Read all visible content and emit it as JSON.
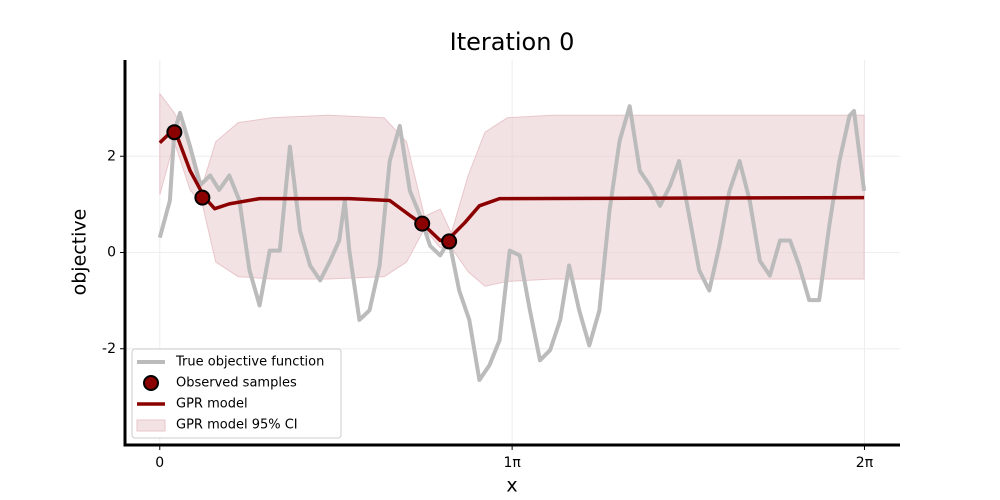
{
  "chart_data": {
    "type": "line",
    "title": "Iteration 0",
    "x_label": "x",
    "y_label": "objective",
    "xlim": [
      -0.31,
      6.6
    ],
    "ylim": [
      -4,
      4
    ],
    "xticks": [
      0,
      {
        "value": 3.14159,
        "label": "1π"
      },
      {
        "value": 6.28318,
        "label": "2π"
      }
    ],
    "yticks": [
      -2,
      0,
      2
    ],
    "grid": true,
    "legend": "lower left",
    "series": [
      {
        "name": "True objective function",
        "kind": "line",
        "color": "#bbbbbb",
        "x": [
          0,
          0.09,
          0.13,
          0.18,
          0.22,
          0.27,
          0.36,
          0.45,
          0.53,
          0.62,
          0.71,
          0.8,
          0.89,
          0.98,
          1.07,
          1.16,
          1.25,
          1.34,
          1.43,
          1.52,
          1.6,
          1.65,
          1.69,
          1.78,
          1.87,
          1.96,
          2.05,
          2.14,
          2.23,
          2.32,
          2.41,
          2.5,
          2.58,
          2.67,
          2.76,
          2.85,
          2.94,
          3.03,
          3.12,
          3.21,
          3.3,
          3.39,
          3.48,
          3.57,
          3.65,
          3.74,
          3.83,
          3.92,
          4.01,
          4.1,
          4.19,
          4.28,
          4.37,
          4.46,
          4.55,
          4.63,
          4.72,
          4.81,
          4.9,
          4.99,
          5.08,
          5.17,
          5.26,
          5.35,
          5.44,
          5.53,
          5.62,
          5.7,
          5.79,
          5.88,
          5.97,
          6.06,
          6.15,
          6.19,
          6.28
        ],
        "values": [
          0.31,
          1.08,
          2.5,
          2.9,
          2.6,
          2.2,
          1.4,
          1.6,
          1.3,
          1.6,
          1.08,
          -0.37,
          -1.1,
          0.04,
          0.04,
          2.2,
          0.45,
          -0.27,
          -0.58,
          -0.17,
          0.25,
          1.08,
          0.04,
          -1.4,
          -1.2,
          -0.27,
          1.9,
          2.63,
          1.28,
          0.77,
          0.14,
          -0.06,
          0.25,
          -0.79,
          -1.4,
          -2.65,
          -2.34,
          -1.82,
          0.04,
          -0.06,
          -1.2,
          -2.24,
          -2.03,
          -1.4,
          -0.27,
          -1.2,
          -1.93,
          -1.2,
          0.87,
          2.32,
          3.04,
          1.7,
          1.39,
          0.97,
          1.39,
          1.9,
          0.77,
          -0.37,
          -0.79,
          0.14,
          1.28,
          1.9,
          1.08,
          -0.17,
          -0.48,
          0.25,
          0.25,
          -0.27,
          -0.99,
          -0.99,
          0.56,
          1.9,
          2.84,
          2.94,
          1.28
        ]
      },
      {
        "name": "Observed samples",
        "kind": "scatter",
        "color": "#8b0000",
        "x": [
          0.13,
          0.38,
          2.34,
          2.58
        ],
        "values": [
          2.5,
          1.14,
          0.6,
          0.23
        ]
      },
      {
        "name": "GPR model",
        "kind": "line",
        "color": "#8b0000",
        "x": [
          0,
          0.13,
          0.27,
          0.4,
          0.49,
          0.62,
          0.89,
          1.69,
          2.05,
          2.23,
          2.36,
          2.5,
          2.58,
          2.72,
          2.85,
          3.03,
          6.28
        ],
        "values": [
          2.28,
          2.57,
          1.7,
          1.14,
          0.91,
          1.01,
          1.12,
          1.12,
          1.08,
          0.77,
          0.56,
          0.25,
          0.29,
          0.62,
          0.97,
          1.12,
          1.14
        ]
      },
      {
        "name": "GPR model 95% CI",
        "kind": "band",
        "color": "#e8c6ca",
        "x": [
          0,
          0.13,
          0.27,
          0.38,
          0.5,
          0.7,
          1.0,
          1.5,
          2.0,
          2.2,
          2.36,
          2.5,
          2.6,
          2.75,
          2.9,
          3.1,
          3.5,
          6.28
        ],
        "upper": [
          3.3,
          2.9,
          2.3,
          1.4,
          2.3,
          2.7,
          2.8,
          2.85,
          2.8,
          2.3,
          0.75,
          0.9,
          0.4,
          1.6,
          2.5,
          2.8,
          2.85,
          2.85
        ],
        "lower": [
          1.2,
          2.3,
          1.3,
          1.0,
          -0.2,
          -0.5,
          -0.55,
          -0.55,
          -0.5,
          -0.2,
          0.5,
          0.1,
          0.1,
          -0.4,
          -0.7,
          -0.6,
          -0.55,
          -0.55
        ]
      }
    ]
  }
}
